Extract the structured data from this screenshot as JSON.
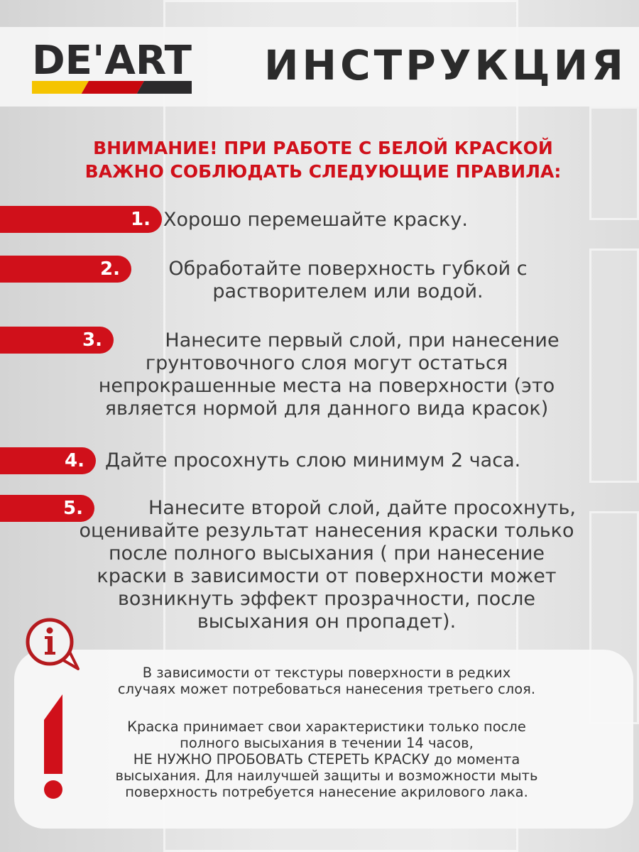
{
  "brand": {
    "logo_text": "DE'ART",
    "stripe_colors": [
      "#f5c400",
      "#c8080e",
      "#2b2a2c"
    ]
  },
  "header": {
    "title": "ИНСТРУКЦИЯ"
  },
  "warning": {
    "line1": "ВНИМАНИЕ! ПРИ РАБОТЕ С БЕЛОЙ КРАСКОЙ",
    "line2": "ВАЖНО СОБЛЮДАТЬ СЛЕДУЮЩИЕ ПРАВИЛА:"
  },
  "steps": [
    {
      "number": "1.",
      "lines": [
        "Хорошо перемешайте краску."
      ]
    },
    {
      "number": "2.",
      "lines": [
        "Обработайте поверхность губкой с",
        "растворителем или водой."
      ]
    },
    {
      "number": "3.",
      "lines": [
        "Нанесите первый слой, при нанесение",
        "грунтовочного слоя могут остаться",
        "непрокрашенные места на поверхности (это",
        "является нормой для данного вида красок)"
      ]
    },
    {
      "number": "4.",
      "lines": [
        "Дайте просохнуть слою минимум 2 часа."
      ]
    },
    {
      "number": "5.",
      "lines": [
        "Нанесите второй слой, дайте просохнуть,",
        "оценивайте результат нанесения краски только",
        "после полного высыхания ( при нанесение",
        "краски в зависимости от поверхности может",
        "возникнуть эффект прозрачности, после",
        "высыхания он пропадет)."
      ]
    }
  ],
  "note": {
    "para1": [
      "В зависимости от текстуры поверхности в редких",
      "случаях может потребоваться нанесения третьего слоя."
    ],
    "para2": [
      "Краска принимает свои характеристики только после",
      "полного высыхания в течении 14 часов,",
      "НЕ НУЖНО  ПРОБОВАТЬ СТЕРЕТЬ КРАСКУ до момента",
      "высыхания. Для наилучшей защиты и возможности мыть",
      "поверхность потребуется нанесение акрилового лака."
    ]
  },
  "colors": {
    "accent": "#d0101a",
    "text": "#3a3a3a"
  }
}
